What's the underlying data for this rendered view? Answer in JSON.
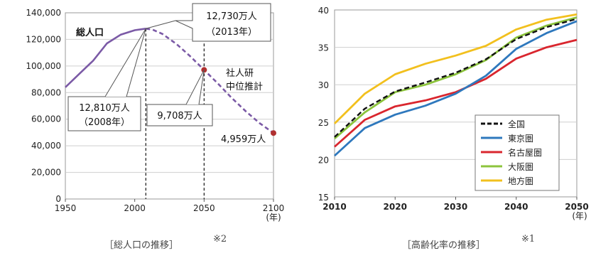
{
  "chart_data": [
    {
      "type": "line",
      "title": "総人口",
      "caption": "［総人口の推移］",
      "caption_note": "※2",
      "xlabel": "(年)",
      "xlim": [
        1950,
        2100
      ],
      "ylim": [
        0,
        140000
      ],
      "x_ticks": [
        "1950",
        "2000",
        "2050",
        "2100"
      ],
      "y_ticks": [
        "0",
        "20,000",
        "40,000",
        "60,000",
        "80,000",
        "100,000",
        "120,000",
        "140,000"
      ],
      "series": [
        {
          "name": "",
          "style": "solid",
          "color": "#7b5aa6",
          "x": [
            1950,
            1960,
            1970,
            1980,
            1990,
            2000,
            2008
          ],
          "y": [
            84000,
            94000,
            104000,
            117000,
            123600,
            126900,
            128100
          ]
        },
        {
          "name": "社人研中位推計",
          "style": "dashed",
          "color": "#7b5aa6",
          "x": [
            2008,
            2013,
            2020,
            2030,
            2040,
            2050,
            2060,
            2070,
            2080,
            2090,
            2100
          ],
          "y": [
            128100,
            127300,
            124100,
            116600,
            107300,
            97080,
            86700,
            75900,
            66000,
            57000,
            49590
          ]
        }
      ],
      "markers": [
        {
          "x": 2050,
          "y": 97080,
          "color": "#b03030"
        },
        {
          "x": 2100,
          "y": 49590,
          "color": "#b03030"
        }
      ],
      "vlines": [
        2008,
        2050
      ],
      "labels": {
        "total": "総人口",
        "peak2013": "12,730万人",
        "peak2013_year": "（2013年）",
        "peak2008": "12,810万人",
        "peak2008_year": "（2008年）",
        "y2050": "9,708万人",
        "y2100": "4,959万人",
        "projection_line1": "社人研",
        "projection_line2": "中位推計"
      }
    },
    {
      "type": "line",
      "title": "",
      "caption": "［高齢化率の推移］",
      "caption_note": "※1",
      "xlabel": "(年)",
      "xlim": [
        2010,
        2050
      ],
      "ylim": [
        15,
        40
      ],
      "x_ticks": [
        "2010",
        "2020",
        "2030",
        "2040",
        "2050"
      ],
      "y_ticks": [
        "15",
        "20",
        "25",
        "30",
        "35",
        "40"
      ],
      "legend_position": "bottom-right",
      "series": [
        {
          "name": "全国",
          "color": "#111111",
          "style": "dashed",
          "x": [
            2010,
            2015,
            2020,
            2025,
            2030,
            2035,
            2040,
            2045,
            2050
          ],
          "y": [
            23.0,
            26.8,
            29.1,
            30.3,
            31.6,
            33.4,
            36.1,
            37.7,
            38.8
          ]
        },
        {
          "name": "東京圏",
          "color": "#2e78bd",
          "style": "solid",
          "x": [
            2010,
            2015,
            2020,
            2025,
            2030,
            2035,
            2040,
            2045,
            2050
          ],
          "y": [
            20.5,
            24.2,
            26.0,
            27.2,
            28.8,
            31.2,
            34.8,
            36.9,
            38.5
          ]
        },
        {
          "name": "名古屋圏",
          "color": "#d9262e",
          "style": "solid",
          "x": [
            2010,
            2015,
            2020,
            2025,
            2030,
            2035,
            2040,
            2045,
            2050
          ],
          "y": [
            21.7,
            25.3,
            27.1,
            27.9,
            29.0,
            30.8,
            33.5,
            35.0,
            36.0
          ]
        },
        {
          "name": "大阪圏",
          "color": "#8cc43c",
          "style": "solid",
          "x": [
            2010,
            2015,
            2020,
            2025,
            2030,
            2035,
            2040,
            2045,
            2050
          ],
          "y": [
            22.8,
            26.3,
            29.0,
            30.0,
            31.4,
            33.3,
            36.3,
            37.9,
            39.0
          ]
        },
        {
          "name": "地方圏",
          "color": "#f2c01e",
          "style": "solid",
          "x": [
            2010,
            2015,
            2020,
            2025,
            2030,
            2035,
            2040,
            2045,
            2050
          ],
          "y": [
            24.8,
            28.8,
            31.4,
            32.8,
            33.9,
            35.2,
            37.4,
            38.7,
            39.4
          ]
        }
      ]
    }
  ]
}
